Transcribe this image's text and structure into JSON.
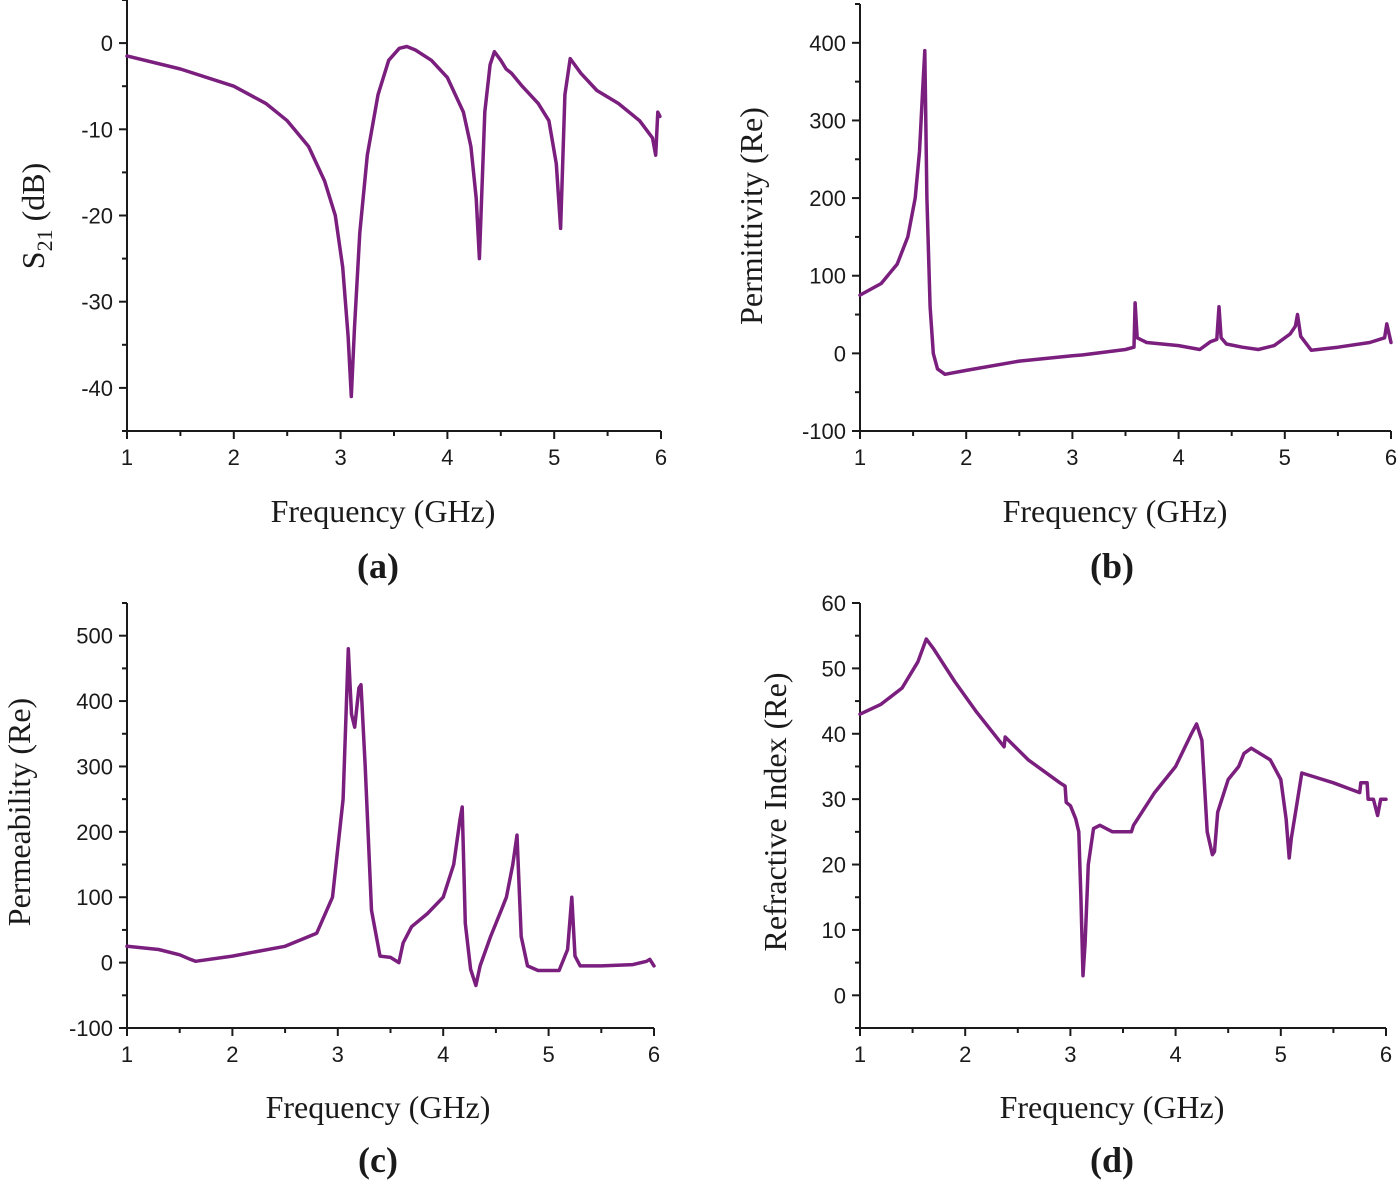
{
  "colors": {
    "series": "#7b1f7f",
    "axis": "#1a1a1a"
  },
  "chart_data": [
    {
      "panel": "(a)",
      "type": "line",
      "title": "",
      "xlabel": "Frequency (GHz)",
      "ylabel_main": "S",
      "ylabel_sub": "21",
      "ylabel_rest": " (dB)",
      "xlim": [
        1,
        6
      ],
      "ylim": [
        -45,
        5
      ],
      "xticks": [
        1,
        2,
        3,
        4,
        5,
        6
      ],
      "yticks": [
        0,
        -10,
        -20,
        -30,
        -40
      ],
      "xtick_labels": [
        "1",
        "2",
        "3",
        "4",
        "5",
        "6"
      ],
      "ytick_labels": [
        "0",
        "-10",
        "-20",
        "-30",
        "-40"
      ],
      "grid": false,
      "series": [
        {
          "name": "S21",
          "x": [
            1.0,
            1.5,
            2.0,
            2.3,
            2.5,
            2.7,
            2.85,
            2.95,
            3.02,
            3.07,
            3.1,
            3.13,
            3.18,
            3.25,
            3.35,
            3.45,
            3.55,
            3.62,
            3.7,
            3.85,
            4.0,
            4.15,
            4.22,
            4.27,
            4.3,
            4.32,
            4.35,
            4.4,
            4.44,
            4.5,
            4.55,
            4.6,
            4.7,
            4.85,
            4.95,
            5.02,
            5.06,
            5.1,
            5.15,
            5.25,
            5.4,
            5.6,
            5.8,
            5.92,
            5.95,
            5.97,
            5.99
          ],
          "y": [
            -1.5,
            -3.0,
            -5.0,
            -7.0,
            -9.0,
            -12.0,
            -16.0,
            -20.0,
            -26.0,
            -34.0,
            -41.0,
            -33.0,
            -22.0,
            -13.0,
            -6.0,
            -2.0,
            -0.6,
            -0.4,
            -0.8,
            -2.0,
            -4.0,
            -8.0,
            -12.0,
            -18.0,
            -25.0,
            -18.0,
            -8.0,
            -2.5,
            -1.0,
            -2.0,
            -3.0,
            -3.5,
            -5.0,
            -7.0,
            -9.0,
            -14.0,
            -21.5,
            -6.0,
            -1.8,
            -3.5,
            -5.5,
            -7.0,
            -9.0,
            -11.0,
            -13.0,
            -8.0,
            -8.5
          ]
        }
      ]
    },
    {
      "panel": "(b)",
      "type": "line",
      "title": "",
      "xlabel": "Frequency (GHz)",
      "ylabel": "Permittivity (Re)",
      "xlim": [
        1,
        6
      ],
      "ylim": [
        -100,
        450
      ],
      "xticks": [
        1,
        2,
        3,
        4,
        5,
        6
      ],
      "yticks": [
        -100,
        0,
        100,
        200,
        300,
        400
      ],
      "xtick_labels": [
        "1",
        "2",
        "3",
        "4",
        "5",
        "6"
      ],
      "ytick_labels": [
        "-100",
        "0",
        "100",
        "200",
        "300",
        "400"
      ],
      "grid": false,
      "series": [
        {
          "name": "Permittivity",
          "x": [
            1.0,
            1.2,
            1.35,
            1.45,
            1.52,
            1.56,
            1.59,
            1.61,
            1.63,
            1.66,
            1.69,
            1.73,
            1.8,
            2.0,
            2.5,
            3.0,
            3.1,
            3.5,
            3.58,
            3.59,
            3.61,
            3.7,
            4.0,
            4.2,
            4.3,
            4.36,
            4.38,
            4.4,
            4.45,
            4.6,
            4.75,
            4.9,
            5.05,
            5.1,
            5.12,
            5.15,
            5.25,
            5.5,
            5.8,
            5.94,
            5.96,
            6.0
          ],
          "y": [
            75,
            90,
            115,
            150,
            200,
            260,
            340,
            390,
            200,
            60,
            0,
            -20,
            -27,
            -22,
            -10,
            -3,
            -2,
            5,
            8,
            65,
            20,
            14,
            10,
            5,
            15,
            18,
            60,
            20,
            12,
            8,
            5,
            10,
            25,
            35,
            50,
            22,
            4,
            8,
            14,
            20,
            38,
            14
          ]
        }
      ]
    },
    {
      "panel": "(c)",
      "type": "line",
      "title": "",
      "xlabel": "Frequency (GHz)",
      "ylabel": "Permeability (Re)",
      "xlim": [
        1,
        6
      ],
      "ylim": [
        -100,
        550
      ],
      "xticks": [
        1,
        2,
        3,
        4,
        5,
        6
      ],
      "yticks": [
        -100,
        0,
        100,
        200,
        300,
        400,
        500
      ],
      "xtick_labels": [
        "1",
        "2",
        "3",
        "4",
        "5",
        "6"
      ],
      "ytick_labels": [
        "-100",
        "0",
        "100",
        "200",
        "300",
        "400",
        "500"
      ],
      "grid": false,
      "series": [
        {
          "name": "Permeability",
          "x": [
            1.0,
            1.3,
            1.5,
            1.6,
            1.65,
            2.0,
            2.5,
            2.8,
            2.95,
            3.05,
            3.1,
            3.13,
            3.16,
            3.2,
            3.22,
            3.26,
            3.32,
            3.4,
            3.5,
            3.58,
            3.62,
            3.7,
            3.85,
            4.0,
            4.1,
            4.16,
            4.18,
            4.21,
            4.26,
            4.31,
            4.35,
            4.45,
            4.55,
            4.6,
            4.66,
            4.7,
            4.74,
            4.8,
            4.9,
            5.1,
            5.18,
            5.22,
            5.25,
            5.3,
            5.5,
            5.8,
            5.93,
            5.96,
            6.0
          ],
          "y": [
            25,
            20,
            12,
            5,
            2,
            10,
            25,
            45,
            100,
            250,
            480,
            380,
            360,
            420,
            425,
            300,
            80,
            10,
            8,
            0,
            30,
            55,
            75,
            100,
            150,
            220,
            238,
            60,
            -10,
            -35,
            -5,
            40,
            80,
            100,
            150,
            195,
            40,
            -5,
            -12,
            -12,
            20,
            100,
            10,
            -5,
            -5,
            -3,
            2,
            5,
            -5
          ]
        }
      ]
    },
    {
      "panel": "(d)",
      "type": "line",
      "title": "",
      "xlabel": "Frequency (GHz)",
      "ylabel": "Refractive Index (Re)",
      "xlim": [
        1,
        6
      ],
      "ylim": [
        -5,
        60
      ],
      "xticks": [
        1,
        2,
        3,
        4,
        5,
        6
      ],
      "yticks": [
        0,
        10,
        20,
        30,
        40,
        50,
        60
      ],
      "xtick_labels": [
        "1",
        "2",
        "3",
        "4",
        "5",
        "6"
      ],
      "ytick_labels": [
        "0",
        "10",
        "20",
        "30",
        "40",
        "50",
        "60"
      ],
      "grid": false,
      "series": [
        {
          "name": "Refractive Index",
          "x": [
            1.0,
            1.2,
            1.4,
            1.55,
            1.63,
            1.7,
            1.9,
            2.1,
            2.37,
            2.38,
            2.6,
            2.9,
            2.95,
            2.96,
            3.0,
            3.05,
            3.08,
            3.1,
            3.12,
            3.14,
            3.17,
            3.22,
            3.28,
            3.4,
            3.5,
            3.58,
            3.6,
            3.8,
            4.0,
            4.15,
            4.2,
            4.25,
            4.3,
            4.35,
            4.37,
            4.4,
            4.5,
            4.6,
            4.65,
            4.72,
            4.9,
            5.0,
            5.05,
            5.08,
            5.1,
            5.15,
            5.2,
            5.5,
            5.75,
            5.76,
            5.82,
            5.83,
            5.88,
            5.92,
            5.95,
            6.0
          ],
          "y": [
            43,
            44.5,
            47,
            51,
            54.5,
            53,
            48,
            43.5,
            38,
            39.5,
            36,
            32.5,
            32,
            29.5,
            29,
            27,
            25,
            15,
            3,
            8,
            20,
            25.5,
            26,
            25,
            25,
            25,
            26,
            31,
            35,
            40,
            41.5,
            39,
            25,
            21.5,
            22,
            28,
            33,
            35,
            37,
            37.8,
            36,
            33,
            27,
            21,
            24,
            29,
            34,
            32.5,
            31,
            32.5,
            32.5,
            30,
            30,
            27.5,
            30,
            30
          ]
        }
      ]
    }
  ]
}
